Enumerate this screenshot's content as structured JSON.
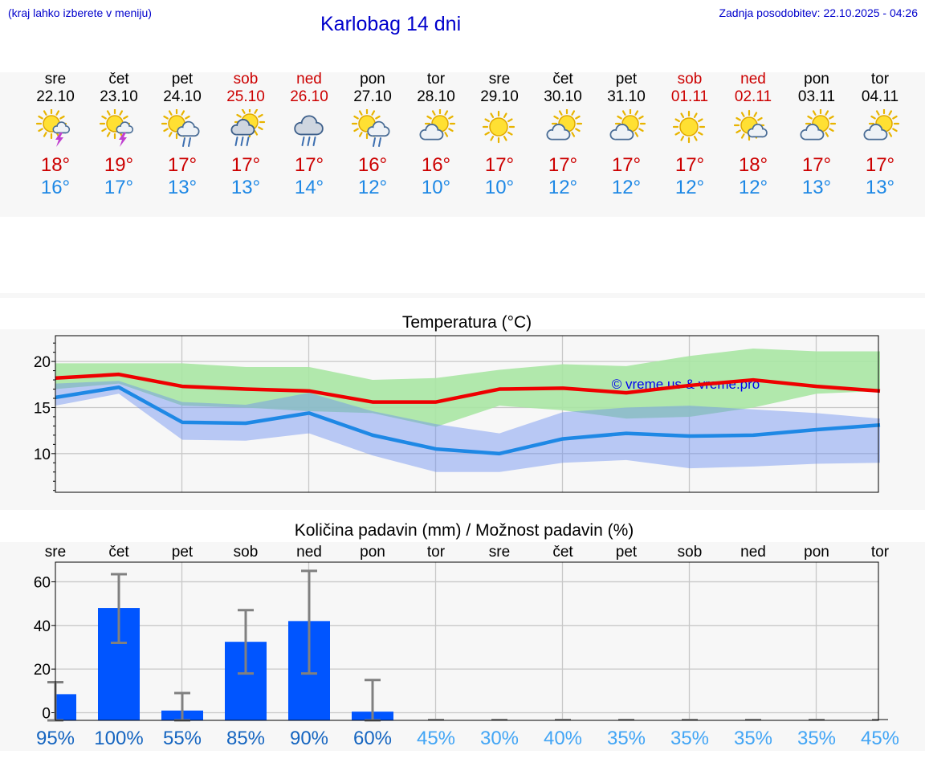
{
  "header": {
    "hint": "(kraj lahko izberete v meniju)",
    "title": "Karlobag 14 dni",
    "updated": "Zadnja posodobitev: 22.10.2025 - 04:26"
  },
  "days": [
    {
      "name": "sre",
      "date": "22.10",
      "max": "18°",
      "min": "16°",
      "weekend": false,
      "icon": "sun-cloud-thunder-icon"
    },
    {
      "name": "čet",
      "date": "23.10",
      "max": "19°",
      "min": "17°",
      "weekend": false,
      "icon": "sun-cloud-thunder-icon"
    },
    {
      "name": "pet",
      "date": "24.10",
      "max": "17°",
      "min": "13°",
      "weekend": false,
      "icon": "sun-cloud-rain-icon"
    },
    {
      "name": "sob",
      "date": "25.10",
      "max": "17°",
      "min": "13°",
      "weekend": true,
      "icon": "sun-cloud-heavy-rain-icon"
    },
    {
      "name": "ned",
      "date": "26.10",
      "max": "17°",
      "min": "14°",
      "weekend": true,
      "icon": "cloud-heavy-rain-icon"
    },
    {
      "name": "pon",
      "date": "27.10",
      "max": "16°",
      "min": "12°",
      "weekend": false,
      "icon": "sun-cloud-rain-icon"
    },
    {
      "name": "tor",
      "date": "28.10",
      "max": "16°",
      "min": "10°",
      "weekend": false,
      "icon": "sun-cloud-icon"
    },
    {
      "name": "sre",
      "date": "29.10",
      "max": "17°",
      "min": "10°",
      "weekend": false,
      "icon": "sun-icon"
    },
    {
      "name": "čet",
      "date": "30.10",
      "max": "17°",
      "min": "12°",
      "weekend": false,
      "icon": "sun-cloud-icon"
    },
    {
      "name": "pet",
      "date": "31.10",
      "max": "17°",
      "min": "12°",
      "weekend": false,
      "icon": "sun-cloud-icon"
    },
    {
      "name": "sob",
      "date": "01.11",
      "max": "17°",
      "min": "12°",
      "weekend": true,
      "icon": "sun-icon"
    },
    {
      "name": "ned",
      "date": "02.11",
      "max": "18°",
      "min": "12°",
      "weekend": true,
      "icon": "sun-small-cloud-icon"
    },
    {
      "name": "pon",
      "date": "03.11",
      "max": "17°",
      "min": "13°",
      "weekend": false,
      "icon": "sun-cloud-icon"
    },
    {
      "name": "tor",
      "date": "04.11",
      "max": "17°",
      "min": "13°",
      "weekend": false,
      "icon": "sun-cloud-icon"
    }
  ],
  "colors": {
    "max": "#ee0000",
    "min": "#1e88e5",
    "max_band": "#a8e6a3",
    "min_band": "#a9c2f5",
    "bar": "#0055ff",
    "error": "#808080",
    "prob_high": "#1565c0",
    "prob_low": "#42a5f5"
  },
  "chart_data": [
    {
      "type": "line",
      "title": "Temperatura (°C)",
      "watermark": "© vreme.us & vreme.pro",
      "x": [
        "22.10",
        "23.10",
        "24.10",
        "25.10",
        "26.10",
        "27.10",
        "28.10",
        "29.10",
        "30.10",
        "31.10",
        "01.11",
        "02.11",
        "03.11",
        "04.11"
      ],
      "ylim": [
        5.8,
        22.8
      ],
      "yticks": [
        10,
        15,
        20
      ],
      "grid": true,
      "series": [
        {
          "values": [
            18.2,
            18.6,
            17.3,
            17.0,
            16.8,
            15.6,
            15.6,
            17.0,
            17.1,
            16.6,
            17.4,
            18.0,
            17.3,
            16.8
          ]
        },
        {
          "values": [
            16.1,
            17.2,
            13.4,
            13.3,
            14.4,
            12.0,
            10.5,
            10.0,
            11.6,
            12.2,
            11.9,
            12.0,
            12.6,
            13.1
          ]
        },
        {
          "upper": [
            19.8,
            19.8,
            19.8,
            19.4,
            19.4,
            18.0,
            18.2,
            19.1,
            19.7,
            19.5,
            20.6,
            21.4,
            21.1,
            21.1
          ],
          "lower": [
            17.0,
            17.6,
            15.2,
            15.0,
            14.6,
            14.4,
            12.9,
            15.2,
            14.7,
            13.8,
            14.0,
            15.0,
            16.5,
            16.8
          ]
        },
        {
          "upper": [
            17.6,
            17.9,
            15.6,
            15.3,
            16.6,
            14.6,
            13.2,
            12.2,
            14.5,
            15.0,
            15.2,
            14.8,
            14.4,
            13.8
          ],
          "lower": [
            15.2,
            16.5,
            11.5,
            11.4,
            12.2,
            9.8,
            8.0,
            8.0,
            9.0,
            9.3,
            8.4,
            8.6,
            8.9,
            9.0
          ]
        }
      ]
    },
    {
      "type": "bar",
      "title": "Količina padavin (mm) / Možnost padavin (%)",
      "categories": [
        "sre",
        "čet",
        "pet",
        "sob",
        "ned",
        "pon",
        "tor",
        "sre",
        "čet",
        "pet",
        "sob",
        "ned",
        "pon",
        "tor"
      ],
      "values": [
        8.5,
        48,
        1,
        32.5,
        42,
        0.5,
        0,
        0,
        0,
        0,
        0,
        0,
        0,
        0
      ],
      "error_low": [
        0,
        32,
        0,
        18,
        18,
        0,
        0,
        0,
        0,
        0,
        0,
        0,
        0,
        0
      ],
      "error_high": [
        14,
        63.5,
        9,
        47,
        65,
        15,
        0,
        0,
        0,
        0,
        0,
        0,
        0,
        0
      ],
      "probability": [
        "95%",
        "100%",
        "55%",
        "85%",
        "90%",
        "60%",
        "45%",
        "30%",
        "40%",
        "35%",
        "35%",
        "35%",
        "35%",
        "45%"
      ],
      "ylim": [
        -3.5,
        69
      ],
      "yticks": [
        0,
        20,
        40,
        60
      ],
      "grid": true
    }
  ]
}
